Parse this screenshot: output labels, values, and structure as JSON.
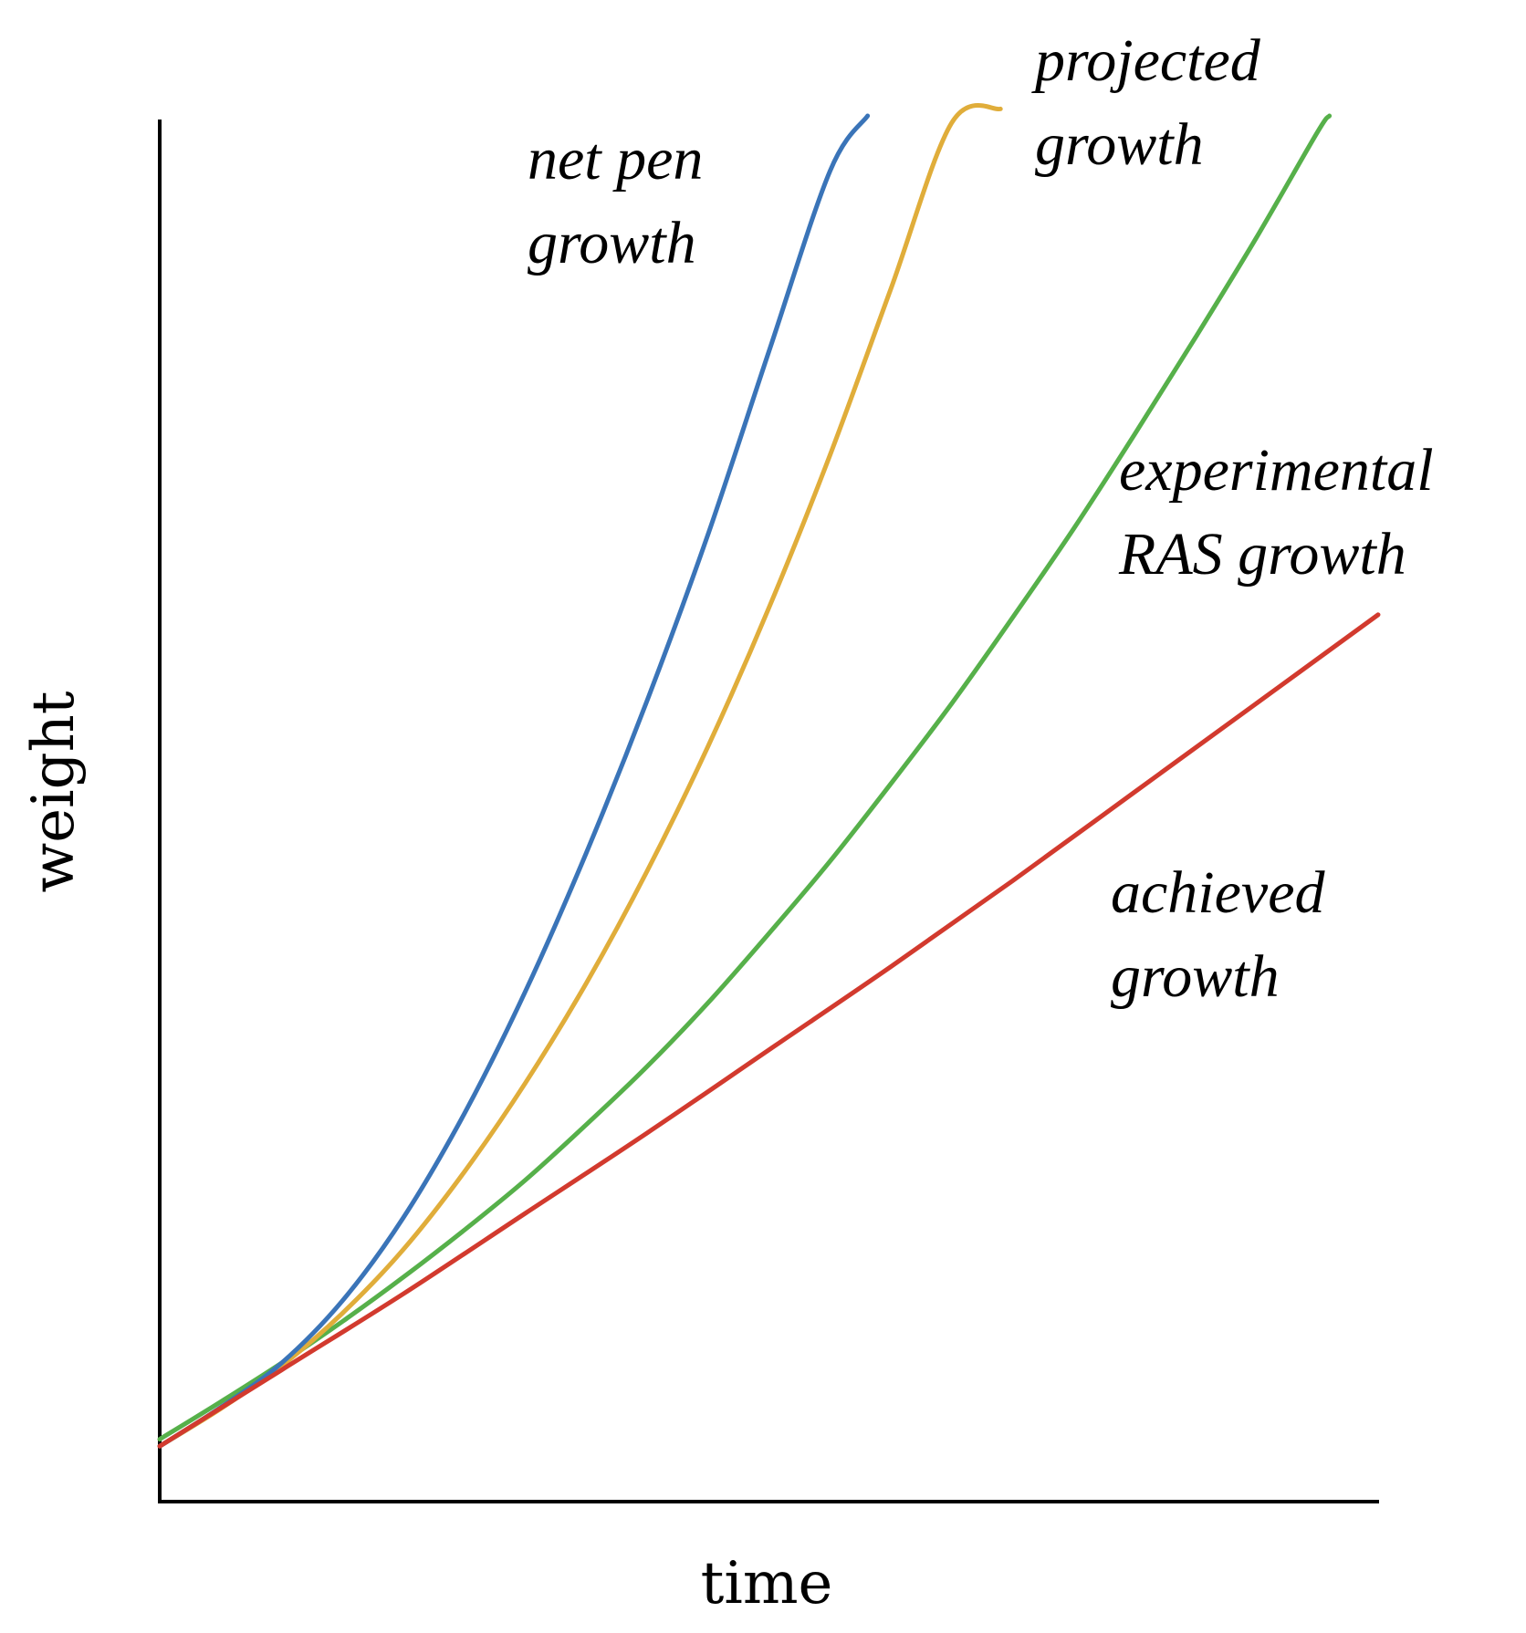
{
  "chart_data": {
    "type": "line",
    "title": "",
    "xlabel": "time",
    "ylabel": "weight",
    "xlim": [
      0,
      10
    ],
    "ylim": [
      0,
      10
    ],
    "grid": false,
    "legend": "inline labels next to curves",
    "x": [
      0,
      0.5,
      1,
      1.5,
      2,
      2.5,
      3,
      3.5,
      4,
      4.5,
      5,
      5.5,
      6,
      6.5,
      7,
      7.5,
      8,
      8.5,
      9,
      9.5,
      10
    ],
    "series": [
      {
        "name": "net pen growth",
        "label_lines": [
          "net pen",
          "growth"
        ],
        "color": "#3a74b8",
        "x": [
          0,
          0.5,
          1,
          1.5,
          2,
          2.5,
          3,
          3.5,
          4,
          4.5,
          5,
          5.5,
          5.81
        ],
        "values": [
          0.4,
          0.68,
          1.0,
          1.45,
          2.05,
          2.8,
          3.68,
          4.68,
          5.78,
          6.98,
          8.3,
          9.6,
          10.0
        ]
      },
      {
        "name": "projected growth",
        "label_lines": [
          "projected",
          "growth"
        ],
        "color": "#e0ad3a",
        "x": [
          0,
          0.5,
          1,
          1.5,
          2,
          2.5,
          3,
          3.5,
          4,
          4.5,
          5,
          5.5,
          6,
          6.5,
          6.9
        ],
        "values": [
          0.4,
          0.67,
          0.98,
          1.36,
          1.82,
          2.38,
          3.02,
          3.74,
          4.55,
          5.45,
          6.45,
          7.55,
          8.75,
          9.95,
          10.05
        ]
      },
      {
        "name": "experimental RAS growth",
        "label_lines": [
          "experimental",
          "RAS growth"
        ],
        "color": "#56b04a",
        "x": [
          0,
          0.5,
          1,
          1.5,
          2,
          2.5,
          3,
          3.5,
          4,
          4.5,
          5,
          5.5,
          6,
          6.5,
          7,
          7.5,
          8,
          8.5,
          9,
          9.5,
          9.6
        ],
        "values": [
          0.45,
          0.72,
          1.0,
          1.3,
          1.62,
          1.96,
          2.32,
          2.72,
          3.14,
          3.6,
          4.1,
          4.62,
          5.18,
          5.76,
          6.38,
          7.02,
          7.7,
          8.4,
          9.12,
          9.88,
          10.0
        ]
      },
      {
        "name": "achieved growth",
        "label_lines": [
          "achieved",
          "growth"
        ],
        "color": "#d23a2e",
        "x": [
          0,
          1,
          2,
          3,
          4,
          5,
          6,
          7,
          8,
          9,
          10
        ],
        "values": [
          0.4,
          0.95,
          1.5,
          2.08,
          2.66,
          3.26,
          3.86,
          4.48,
          5.12,
          5.76,
          6.4
        ]
      }
    ]
  }
}
